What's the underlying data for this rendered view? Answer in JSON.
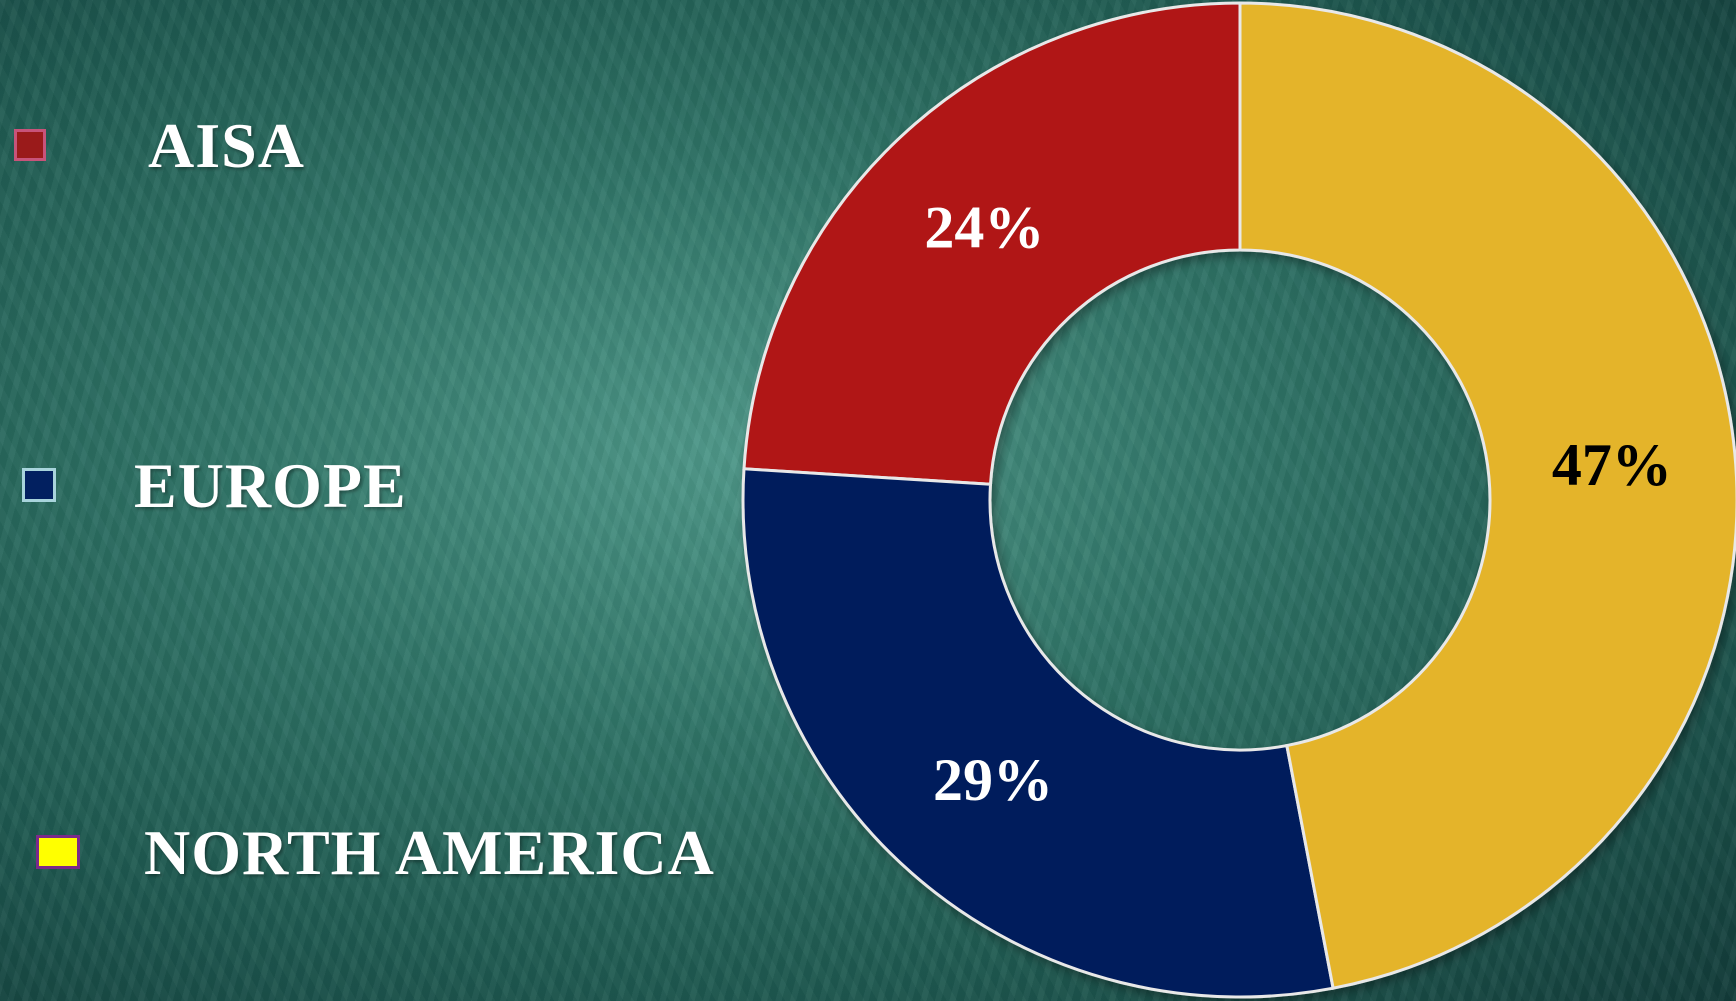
{
  "chart_data": {
    "type": "pie",
    "donut": true,
    "categories": [
      "AISA",
      "EUROPE",
      "NORTH AMERICA"
    ],
    "values": [
      24,
      29,
      47
    ],
    "data_labels": [
      "24%",
      "29%",
      "47%"
    ],
    "colors": [
      "#b01414",
      "#021c5c",
      "#e4b42c"
    ],
    "label_colors": [
      "#ffffff",
      "#ffffff",
      "#000000"
    ],
    "legend_position": "left",
    "title": ""
  },
  "legend": {
    "items": [
      {
        "label": "AISA",
        "swatch_color": "#9a1a1a",
        "swatch_border": "#c8537a"
      },
      {
        "label": "EUROPE",
        "swatch_color": "#022060",
        "swatch_border": "#a8d4dc"
      },
      {
        "label": "NORTH AMERICA",
        "swatch_color": "#ffff00",
        "swatch_border": "#7b2a8a"
      }
    ]
  }
}
